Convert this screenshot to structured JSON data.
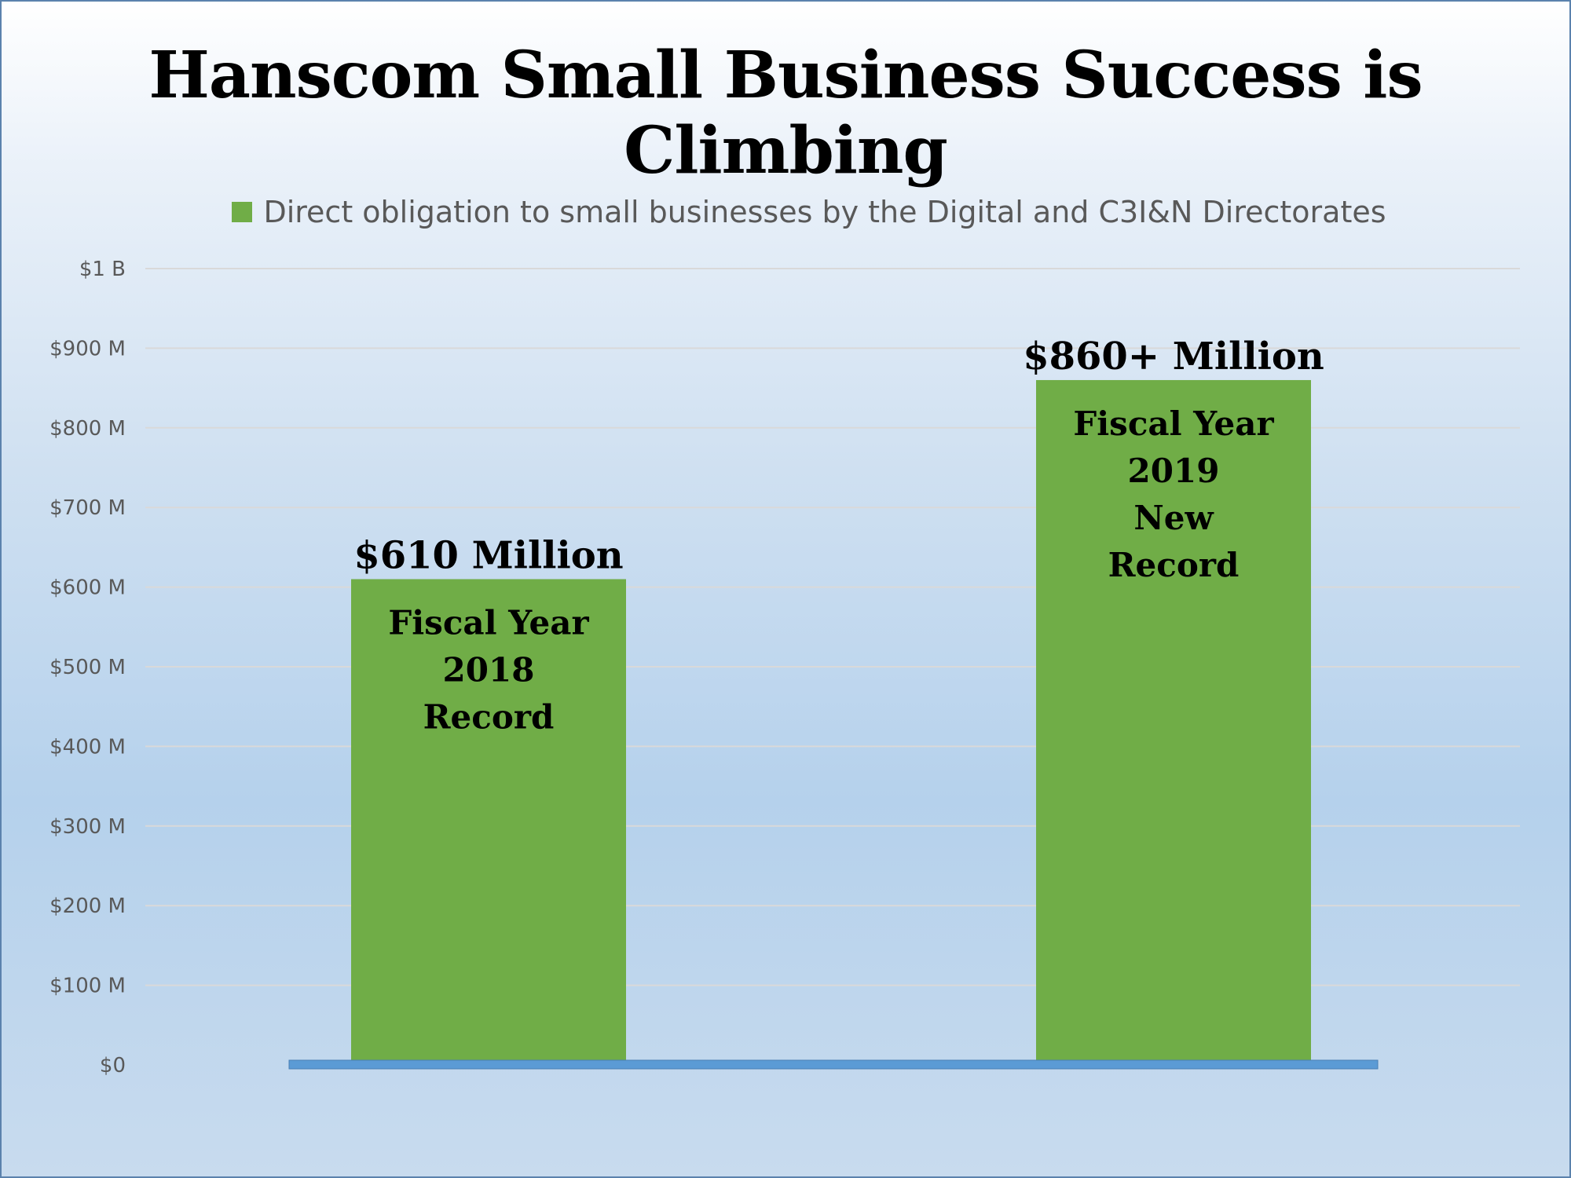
{
  "chart_data": {
    "type": "bar",
    "title": "Hanscom Small Business Success is Climbing",
    "legend": {
      "position": "top",
      "entries": [
        "Direct obligation to small businesses by the Digital and C3I&N Directorates"
      ]
    },
    "series": [
      {
        "name": "Direct obligation to small businesses by the Digital and C3I&N Directorates",
        "values": [
          610,
          860
        ]
      }
    ],
    "categories": [
      "Fiscal Year 2018",
      "Fiscal Year 2019"
    ],
    "data_labels": [
      "$610 Million",
      "$860+ Million"
    ],
    "bar_annotations": [
      [
        "Fiscal Year",
        "2018",
        "Record"
      ],
      [
        "Fiscal Year",
        "2019",
        "New",
        "Record"
      ]
    ],
    "y_ticks": [
      {
        "value": 0,
        "label": "$0"
      },
      {
        "value": 100,
        "label": "$100 M"
      },
      {
        "value": 200,
        "label": "$200 M"
      },
      {
        "value": 300,
        "label": "$300 M"
      },
      {
        "value": 400,
        "label": "$400 M"
      },
      {
        "value": 500,
        "label": "$500 M"
      },
      {
        "value": 600,
        "label": "$600 M"
      },
      {
        "value": 700,
        "label": "$700 M"
      },
      {
        "value": 800,
        "label": "$800 M"
      },
      {
        "value": 900,
        "label": "$900 M"
      },
      {
        "value": 1000,
        "label": "$1 B"
      }
    ],
    "ylim": [
      0,
      1000
    ],
    "grid": true,
    "colors": {
      "bar": "#70ad47",
      "baseline": "#5b9bd5",
      "gridline": "#d9d9d9"
    }
  }
}
